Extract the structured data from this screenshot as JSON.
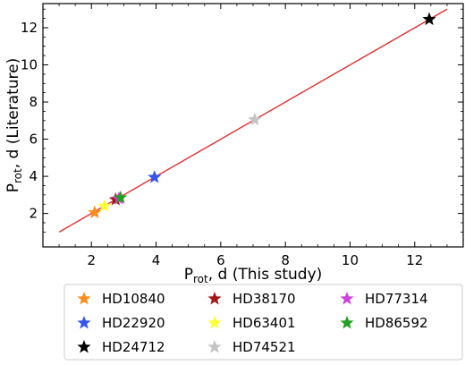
{
  "chart_data": {
    "type": "scatter",
    "xlabel": {
      "main": "P",
      "sub": "rot",
      "rest": ", d (This study)"
    },
    "ylabel": {
      "main": "P",
      "sub": "rot",
      "rest": ", d (Literature)"
    },
    "xlim": [
      0.5,
      13.5
    ],
    "ylim": [
      0.2,
      13.3
    ],
    "xticks": [
      2,
      4,
      6,
      8,
      10,
      12
    ],
    "yticks": [
      2,
      4,
      6,
      8,
      10,
      12
    ],
    "grid": false,
    "legend_position": "bottom-outside",
    "reference_line": {
      "x": [
        1,
        13
      ],
      "y": [
        1,
        13
      ],
      "color": "#e03030"
    },
    "series": [
      {
        "name": "HD10840",
        "color": "#ff8c1a",
        "x": [
          2.1
        ],
        "y": [
          2.05
        ]
      },
      {
        "name": "HD22920",
        "color": "#3355ee",
        "x": [
          3.95
        ],
        "y": [
          3.95
        ]
      },
      {
        "name": "HD24712",
        "color": "#000000",
        "x": [
          12.45
        ],
        "y": [
          12.45
        ]
      },
      {
        "name": "HD38170",
        "color": "#a51818",
        "x": [
          2.75
        ],
        "y": [
          2.75
        ]
      },
      {
        "name": "HD63401",
        "color": "#ffff33",
        "x": [
          2.4
        ],
        "y": [
          2.4
        ]
      },
      {
        "name": "HD74521",
        "color": "#c4c4c4",
        "x": [
          7.05
        ],
        "y": [
          7.05
        ]
      },
      {
        "name": "HD77314",
        "color": "#cc44dd",
        "x": [
          2.85
        ],
        "y": [
          2.8
        ]
      },
      {
        "name": "HD86592",
        "color": "#22a022",
        "x": [
          2.9
        ],
        "y": [
          2.85
        ]
      }
    ]
  }
}
